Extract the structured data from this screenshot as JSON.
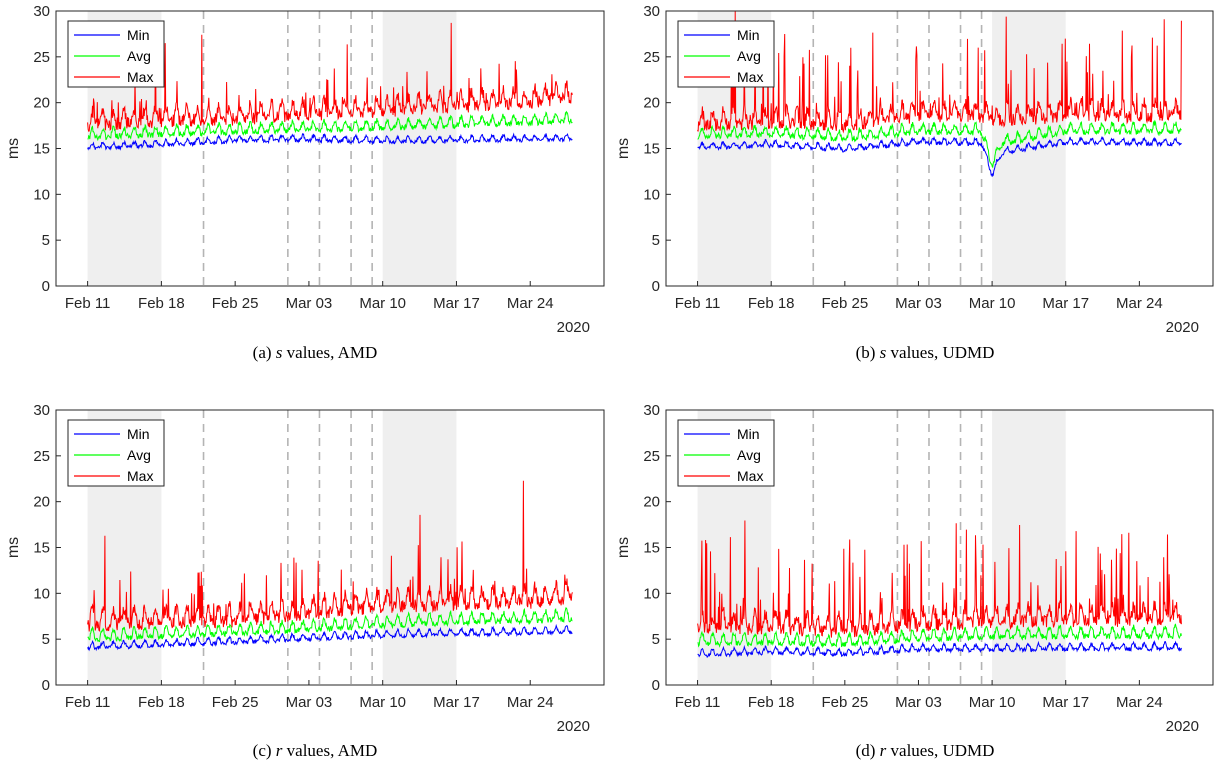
{
  "chart_data": [
    {
      "id": "a",
      "type": "line",
      "caption_letter": "(a)",
      "caption_var": "s",
      "caption_rest": " values, AMD",
      "ylabel": "ms",
      "ylim": [
        0,
        30
      ],
      "yticks": [
        0,
        5,
        10,
        15,
        20,
        25,
        30
      ],
      "xlim": [
        "2020-02-08",
        "2020-03-31"
      ],
      "xticks": [
        {
          "date": "2020-02-11",
          "label": "Feb 11"
        },
        {
          "date": "2020-02-18",
          "label": "Feb 18"
        },
        {
          "date": "2020-02-25",
          "label": "Feb 25"
        },
        {
          "date": "2020-03-03",
          "label": "Mar 03"
        },
        {
          "date": "2020-03-10",
          "label": "Mar 10"
        },
        {
          "date": "2020-03-17",
          "label": "Mar 17"
        },
        {
          "date": "2020-03-24",
          "label": "Mar 24"
        }
      ],
      "year_label": "2020",
      "shaded_ranges": [
        [
          "2020-02-11",
          "2020-02-18"
        ],
        [
          "2020-03-10",
          "2020-03-17"
        ]
      ],
      "dashed_lines": [
        "2020-02-22",
        "2020-03-01",
        "2020-03-04",
        "2020-03-07",
        "2020-03-09"
      ],
      "legend": {
        "position": "top-left",
        "entries": [
          "Min",
          "Avg",
          "Max"
        ]
      },
      "series": [
        {
          "name": "Min",
          "color": "#0000ff",
          "values": [
            [
              "2020-02-11",
              15.0
            ],
            [
              "2020-02-18",
              15.3
            ],
            [
              "2020-02-25",
              15.8
            ],
            [
              "2020-03-03",
              15.9
            ],
            [
              "2020-03-10",
              15.7
            ],
            [
              "2020-03-17",
              15.8
            ],
            [
              "2020-03-24",
              15.9
            ],
            [
              "2020-03-28",
              16.0
            ]
          ]
        },
        {
          "name": "Avg",
          "color": "#00ff00",
          "values": [
            [
              "2020-02-11",
              16.2
            ],
            [
              "2020-02-18",
              16.5
            ],
            [
              "2020-02-25",
              16.8
            ],
            [
              "2020-03-03",
              17.0
            ],
            [
              "2020-03-10",
              17.2
            ],
            [
              "2020-03-17",
              17.5
            ],
            [
              "2020-03-24",
              17.8
            ],
            [
              "2020-03-28",
              18.0
            ]
          ]
        },
        {
          "name": "Max",
          "color": "#ff0000",
          "values": [
            [
              "2020-02-11",
              17.5
            ],
            [
              "2020-02-18",
              18.0
            ],
            [
              "2020-02-25",
              18.2
            ],
            [
              "2020-03-03",
              18.7
            ],
            [
              "2020-03-10",
              19.0
            ],
            [
              "2020-03-17",
              19.5
            ],
            [
              "2020-03-24",
              20.0
            ],
            [
              "2020-03-28",
              20.5
            ]
          ]
        }
      ]
    },
    {
      "id": "b",
      "type": "line",
      "caption_letter": "(b)",
      "caption_var": "s",
      "caption_rest": " values, UDMD",
      "ylabel": "ms",
      "ylim": [
        0,
        30
      ],
      "yticks": [
        0,
        5,
        10,
        15,
        20,
        25,
        30
      ],
      "xlim": [
        "2020-02-08",
        "2020-03-31"
      ],
      "xticks": [
        {
          "date": "2020-02-11",
          "label": "Feb 11"
        },
        {
          "date": "2020-02-18",
          "label": "Feb 18"
        },
        {
          "date": "2020-02-25",
          "label": "Feb 25"
        },
        {
          "date": "2020-03-03",
          "label": "Mar 03"
        },
        {
          "date": "2020-03-10",
          "label": "Mar 10"
        },
        {
          "date": "2020-03-17",
          "label": "Mar 17"
        },
        {
          "date": "2020-03-24",
          "label": "Mar 24"
        }
      ],
      "year_label": "2020",
      "shaded_ranges": [
        [
          "2020-02-11",
          "2020-02-18"
        ],
        [
          "2020-03-10",
          "2020-03-17"
        ]
      ],
      "dashed_lines": [
        "2020-02-22",
        "2020-03-01",
        "2020-03-04",
        "2020-03-07",
        "2020-03-09"
      ],
      "legend": {
        "position": "top-left",
        "entries": [
          "Min",
          "Avg",
          "Max"
        ]
      },
      "series": [
        {
          "name": "Min",
          "color": "#0000ff",
          "values": [
            [
              "2020-02-11",
              15.0
            ],
            [
              "2020-02-18",
              15.3
            ],
            [
              "2020-02-25",
              14.8
            ],
            [
              "2020-03-03",
              15.6
            ],
            [
              "2020-03-09",
              15.5
            ],
            [
              "2020-03-10",
              12.0
            ],
            [
              "2020-03-11",
              14.5
            ],
            [
              "2020-03-17",
              15.6
            ],
            [
              "2020-03-24",
              15.5
            ],
            [
              "2020-03-28",
              15.5
            ]
          ]
        },
        {
          "name": "Avg",
          "color": "#00ff00",
          "values": [
            [
              "2020-02-11",
              16.3
            ],
            [
              "2020-02-18",
              16.5
            ],
            [
              "2020-02-25",
              16.0
            ],
            [
              "2020-03-03",
              16.8
            ],
            [
              "2020-03-09",
              16.7
            ],
            [
              "2020-03-10",
              13.0
            ],
            [
              "2020-03-11",
              15.5
            ],
            [
              "2020-03-17",
              16.8
            ],
            [
              "2020-03-24",
              16.8
            ],
            [
              "2020-03-28",
              16.9
            ]
          ]
        },
        {
          "name": "Max",
          "color": "#ff0000",
          "values": [
            [
              "2020-02-11",
              17.5
            ],
            [
              "2020-02-18",
              17.8
            ],
            [
              "2020-02-25",
              17.5
            ],
            [
              "2020-03-03",
              18.5
            ],
            [
              "2020-03-09",
              18.5
            ],
            [
              "2020-03-10",
              18.0
            ],
            [
              "2020-03-17",
              18.5
            ],
            [
              "2020-03-24",
              18.5
            ],
            [
              "2020-03-28",
              18.7
            ]
          ]
        }
      ]
    },
    {
      "id": "c",
      "type": "line",
      "caption_letter": "(c)",
      "caption_var": "r",
      "caption_rest": " values, AMD",
      "ylabel": "ms",
      "ylim": [
        0,
        30
      ],
      "yticks": [
        0,
        5,
        10,
        15,
        20,
        25,
        30
      ],
      "xlim": [
        "2020-02-08",
        "2020-03-31"
      ],
      "xticks": [
        {
          "date": "2020-02-11",
          "label": "Feb 11"
        },
        {
          "date": "2020-02-18",
          "label": "Feb 18"
        },
        {
          "date": "2020-02-25",
          "label": "Feb 25"
        },
        {
          "date": "2020-03-03",
          "label": "Mar 03"
        },
        {
          "date": "2020-03-10",
          "label": "Mar 10"
        },
        {
          "date": "2020-03-17",
          "label": "Mar 17"
        },
        {
          "date": "2020-03-24",
          "label": "Mar 24"
        }
      ],
      "year_label": "2020",
      "shaded_ranges": [
        [
          "2020-02-11",
          "2020-02-18"
        ],
        [
          "2020-03-10",
          "2020-03-17"
        ]
      ],
      "dashed_lines": [
        "2020-02-22",
        "2020-03-01",
        "2020-03-04",
        "2020-03-07",
        "2020-03-09"
      ],
      "legend": {
        "position": "top-left",
        "entries": [
          "Min",
          "Avg",
          "Max"
        ]
      },
      "series": [
        {
          "name": "Min",
          "color": "#0000ff",
          "values": [
            [
              "2020-02-11",
              4.0
            ],
            [
              "2020-02-18",
              4.3
            ],
            [
              "2020-02-25",
              4.6
            ],
            [
              "2020-03-03",
              5.0
            ],
            [
              "2020-03-10",
              5.3
            ],
            [
              "2020-03-17",
              5.5
            ],
            [
              "2020-03-24",
              5.6
            ],
            [
              "2020-03-28",
              5.8
            ]
          ]
        },
        {
          "name": "Avg",
          "color": "#00ff00",
          "values": [
            [
              "2020-02-11",
              5.0
            ],
            [
              "2020-02-18",
              5.3
            ],
            [
              "2020-02-25",
              5.6
            ],
            [
              "2020-03-03",
              6.0
            ],
            [
              "2020-03-10",
              6.5
            ],
            [
              "2020-03-17",
              6.8
            ],
            [
              "2020-03-24",
              7.0
            ],
            [
              "2020-03-28",
              7.2
            ]
          ]
        },
        {
          "name": "Max",
          "color": "#ff0000",
          "values": [
            [
              "2020-02-11",
              6.5
            ],
            [
              "2020-02-18",
              6.8
            ],
            [
              "2020-02-25",
              7.0
            ],
            [
              "2020-03-03",
              7.8
            ],
            [
              "2020-03-10",
              8.5
            ],
            [
              "2020-03-17",
              8.8
            ],
            [
              "2020-03-24",
              9.0
            ],
            [
              "2020-03-28",
              9.5
            ]
          ]
        }
      ]
    },
    {
      "id": "d",
      "type": "line",
      "caption_letter": "(d)",
      "caption_var": "r",
      "caption_rest": " values, UDMD",
      "ylabel": "ms",
      "ylim": [
        0,
        30
      ],
      "yticks": [
        0,
        5,
        10,
        15,
        20,
        25,
        30
      ],
      "xlim": [
        "2020-02-08",
        "2020-03-31"
      ],
      "xticks": [
        {
          "date": "2020-02-11",
          "label": "Feb 11"
        },
        {
          "date": "2020-02-18",
          "label": "Feb 18"
        },
        {
          "date": "2020-02-25",
          "label": "Feb 25"
        },
        {
          "date": "2020-03-03",
          "label": "Mar 03"
        },
        {
          "date": "2020-03-10",
          "label": "Mar 10"
        },
        {
          "date": "2020-03-17",
          "label": "Mar 17"
        },
        {
          "date": "2020-03-24",
          "label": "Mar 24"
        }
      ],
      "year_label": "2020",
      "shaded_ranges": [
        [
          "2020-02-11",
          "2020-02-18"
        ],
        [
          "2020-03-10",
          "2020-03-17"
        ]
      ],
      "dashed_lines": [
        "2020-02-22",
        "2020-03-01",
        "2020-03-04",
        "2020-03-07",
        "2020-03-09"
      ],
      "legend": {
        "position": "top-left",
        "entries": [
          "Min",
          "Avg",
          "Max"
        ]
      },
      "series": [
        {
          "name": "Min",
          "color": "#0000ff",
          "values": [
            [
              "2020-02-11",
              3.2
            ],
            [
              "2020-02-18",
              3.5
            ],
            [
              "2020-02-25",
              3.3
            ],
            [
              "2020-03-03",
              3.8
            ],
            [
              "2020-03-10",
              3.8
            ],
            [
              "2020-03-17",
              3.9
            ],
            [
              "2020-03-24",
              3.9
            ],
            [
              "2020-03-28",
              4.0
            ]
          ]
        },
        {
          "name": "Avg",
          "color": "#00ff00",
          "values": [
            [
              "2020-02-11",
              4.5
            ],
            [
              "2020-02-18",
              4.6
            ],
            [
              "2020-02-25",
              4.4
            ],
            [
              "2020-03-03",
              5.0
            ],
            [
              "2020-03-10",
              5.2
            ],
            [
              "2020-03-17",
              5.3
            ],
            [
              "2020-03-24",
              5.3
            ],
            [
              "2020-03-28",
              5.4
            ]
          ]
        },
        {
          "name": "Max",
          "color": "#ff0000",
          "values": [
            [
              "2020-02-11",
              6.0
            ],
            [
              "2020-02-18",
              6.2
            ],
            [
              "2020-02-25",
              5.8
            ],
            [
              "2020-03-03",
              6.5
            ],
            [
              "2020-03-10",
              6.8
            ],
            [
              "2020-03-17",
              7.0
            ],
            [
              "2020-03-24",
              7.0
            ],
            [
              "2020-03-28",
              7.2
            ]
          ]
        }
      ]
    }
  ]
}
